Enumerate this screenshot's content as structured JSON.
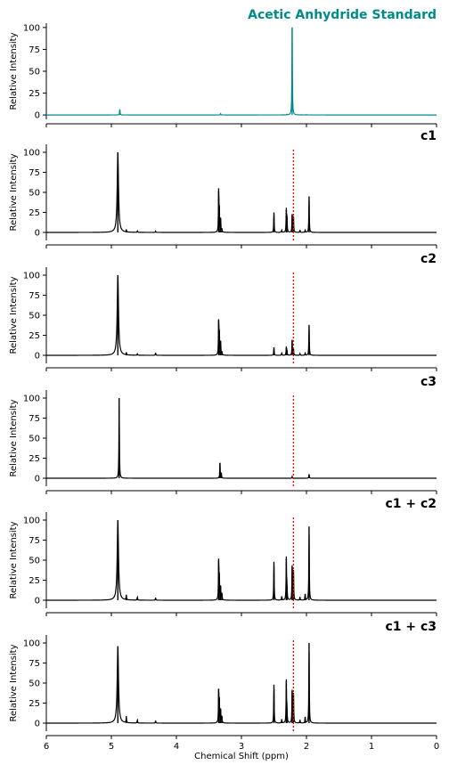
{
  "figure": {
    "xlabel": "Chemical Shift (ppm)",
    "xticks": [
      "6",
      "5",
      "4",
      "3",
      "2",
      "1",
      "0"
    ],
    "reference_ppm": 2.2,
    "reference_color": "#ff0000"
  },
  "chart_data": [
    {
      "type": "line",
      "title": "Acetic Anhydride Standard",
      "title_color": "#008b8b",
      "line_color": "#008b8b",
      "xlabel": "",
      "ylabel": "Relative Intensity",
      "xlim": [
        6,
        0
      ],
      "ylim": [
        -5,
        105
      ],
      "yticks": [
        0,
        25,
        50,
        75,
        100
      ],
      "reference_line": false,
      "peaks": [
        {
          "x": 4.87,
          "y": 6.5,
          "w": 0.004
        },
        {
          "x": 3.32,
          "y": 1.6,
          "w": 0.004
        },
        {
          "x": 2.22,
          "y": 100,
          "w": 0.004
        },
        {
          "x": 2.3,
          "y": 0.7,
          "w": 0.004
        },
        {
          "x": 2.0,
          "y": 0.5,
          "w": 0.004
        }
      ]
    },
    {
      "type": "line",
      "title": "c1",
      "title_color": "#000000",
      "line_color": "#000000",
      "xlabel": "",
      "ylabel": "Relative Intensity",
      "xlim": [
        6,
        0
      ],
      "ylim": [
        -10,
        110
      ],
      "yticks": [
        0,
        25,
        50,
        75,
        100
      ],
      "reference_line": true,
      "peaks": [
        {
          "x": 4.9,
          "y": 100,
          "w": 0.012
        },
        {
          "x": 4.77,
          "y": 3,
          "w": 0.004
        },
        {
          "x": 4.6,
          "y": 2,
          "w": 0.004
        },
        {
          "x": 4.32,
          "y": 1.5,
          "w": 0.004
        },
        {
          "x": 3.35,
          "y": 55,
          "w": 0.004
        },
        {
          "x": 3.34,
          "y": 30,
          "w": 0.004
        },
        {
          "x": 3.32,
          "y": 18,
          "w": 0.004
        },
        {
          "x": 3.3,
          "y": 4,
          "w": 0.004
        },
        {
          "x": 2.5,
          "y": 25,
          "w": 0.004
        },
        {
          "x": 2.38,
          "y": 3,
          "w": 0.004
        },
        {
          "x": 2.31,
          "y": 28,
          "w": 0.004
        },
        {
          "x": 2.3,
          "y": 20,
          "w": 0.004
        },
        {
          "x": 2.22,
          "y": 22,
          "w": 0.004
        },
        {
          "x": 2.2,
          "y": 20,
          "w": 0.004
        },
        {
          "x": 2.1,
          "y": 3,
          "w": 0.004
        },
        {
          "x": 2.02,
          "y": 3,
          "w": 0.004
        },
        {
          "x": 1.96,
          "y": 45,
          "w": 0.004
        }
      ]
    },
    {
      "type": "line",
      "title": "c2",
      "title_color": "#000000",
      "line_color": "#000000",
      "xlabel": "",
      "ylabel": "Relative Intensity",
      "xlim": [
        6,
        0
      ],
      "ylim": [
        -10,
        110
      ],
      "yticks": [
        0,
        25,
        50,
        75,
        100
      ],
      "reference_line": true,
      "peaks": [
        {
          "x": 4.9,
          "y": 100,
          "w": 0.012
        },
        {
          "x": 4.77,
          "y": 3,
          "w": 0.004
        },
        {
          "x": 4.6,
          "y": 2,
          "w": 0.004
        },
        {
          "x": 4.32,
          "y": 3,
          "w": 0.004
        },
        {
          "x": 3.35,
          "y": 45,
          "w": 0.004
        },
        {
          "x": 3.34,
          "y": 30,
          "w": 0.004
        },
        {
          "x": 3.32,
          "y": 18,
          "w": 0.004
        },
        {
          "x": 3.3,
          "y": 4,
          "w": 0.004
        },
        {
          "x": 2.5,
          "y": 10,
          "w": 0.004
        },
        {
          "x": 2.38,
          "y": 3,
          "w": 0.004
        },
        {
          "x": 2.31,
          "y": 10,
          "w": 0.004
        },
        {
          "x": 2.3,
          "y": 6,
          "w": 0.004
        },
        {
          "x": 2.22,
          "y": 19,
          "w": 0.004
        },
        {
          "x": 2.2,
          "y": 8,
          "w": 0.004
        },
        {
          "x": 2.1,
          "y": 2,
          "w": 0.004
        },
        {
          "x": 2.02,
          "y": 3,
          "w": 0.004
        },
        {
          "x": 1.96,
          "y": 38,
          "w": 0.004
        }
      ]
    },
    {
      "type": "line",
      "title": "c3",
      "title_color": "#000000",
      "line_color": "#000000",
      "xlabel": "",
      "ylabel": "Relative Intensity",
      "xlim": [
        6,
        0
      ],
      "ylim": [
        -10,
        110
      ],
      "yticks": [
        0,
        25,
        50,
        75,
        100
      ],
      "reference_line": true,
      "peaks": [
        {
          "x": 4.88,
          "y": 100,
          "w": 0.004
        },
        {
          "x": 3.33,
          "y": 19,
          "w": 0.004
        },
        {
          "x": 3.31,
          "y": 7,
          "w": 0.004
        },
        {
          "x": 2.22,
          "y": 2,
          "w": 0.004
        },
        {
          "x": 1.96,
          "y": 5,
          "w": 0.004
        }
      ]
    },
    {
      "type": "line",
      "title": "c1 + c2",
      "title_color": "#000000",
      "line_color": "#000000",
      "xlabel": "",
      "ylabel": "Relative Intensity",
      "xlim": [
        6,
        0
      ],
      "ylim": [
        -10,
        110
      ],
      "yticks": [
        0,
        25,
        50,
        75,
        100
      ],
      "reference_line": true,
      "peaks": [
        {
          "x": 4.9,
          "y": 100,
          "w": 0.012
        },
        {
          "x": 4.77,
          "y": 6,
          "w": 0.004
        },
        {
          "x": 4.6,
          "y": 4,
          "w": 0.004
        },
        {
          "x": 4.32,
          "y": 3,
          "w": 0.004
        },
        {
          "x": 3.35,
          "y": 52,
          "w": 0.004
        },
        {
          "x": 3.34,
          "y": 30,
          "w": 0.004
        },
        {
          "x": 3.32,
          "y": 18,
          "w": 0.004
        },
        {
          "x": 3.3,
          "y": 8,
          "w": 0.004
        },
        {
          "x": 2.5,
          "y": 48,
          "w": 0.004
        },
        {
          "x": 2.38,
          "y": 5,
          "w": 0.004
        },
        {
          "x": 2.31,
          "y": 52,
          "w": 0.004
        },
        {
          "x": 2.3,
          "y": 18,
          "w": 0.004
        },
        {
          "x": 2.22,
          "y": 42,
          "w": 0.004
        },
        {
          "x": 2.2,
          "y": 38,
          "w": 0.004
        },
        {
          "x": 2.1,
          "y": 4,
          "w": 0.004
        },
        {
          "x": 2.02,
          "y": 8,
          "w": 0.004
        },
        {
          "x": 1.96,
          "y": 92,
          "w": 0.004
        }
      ]
    },
    {
      "type": "line",
      "title": "c1 + c3",
      "title_color": "#000000",
      "line_color": "#000000",
      "xlabel": "Chemical Shift (ppm)",
      "ylabel": "Relative Intensity",
      "xlim": [
        6,
        0
      ],
      "ylim": [
        -10,
        110
      ],
      "yticks": [
        0,
        25,
        50,
        75,
        100
      ],
      "reference_line": true,
      "peaks": [
        {
          "x": 4.9,
          "y": 96,
          "w": 0.012
        },
        {
          "x": 4.77,
          "y": 8,
          "w": 0.004
        },
        {
          "x": 4.6,
          "y": 4,
          "w": 0.004
        },
        {
          "x": 4.32,
          "y": 3,
          "w": 0.004
        },
        {
          "x": 3.35,
          "y": 43,
          "w": 0.004
        },
        {
          "x": 3.34,
          "y": 30,
          "w": 0.004
        },
        {
          "x": 3.32,
          "y": 18,
          "w": 0.004
        },
        {
          "x": 3.3,
          "y": 8,
          "w": 0.004
        },
        {
          "x": 2.5,
          "y": 48,
          "w": 0.004
        },
        {
          "x": 2.38,
          "y": 5,
          "w": 0.004
        },
        {
          "x": 2.31,
          "y": 52,
          "w": 0.004
        },
        {
          "x": 2.3,
          "y": 18,
          "w": 0.004
        },
        {
          "x": 2.22,
          "y": 40,
          "w": 0.004
        },
        {
          "x": 2.2,
          "y": 38,
          "w": 0.004
        },
        {
          "x": 2.1,
          "y": 4,
          "w": 0.004
        },
        {
          "x": 2.02,
          "y": 8,
          "w": 0.004
        },
        {
          "x": 1.96,
          "y": 100,
          "w": 0.004
        }
      ]
    }
  ]
}
